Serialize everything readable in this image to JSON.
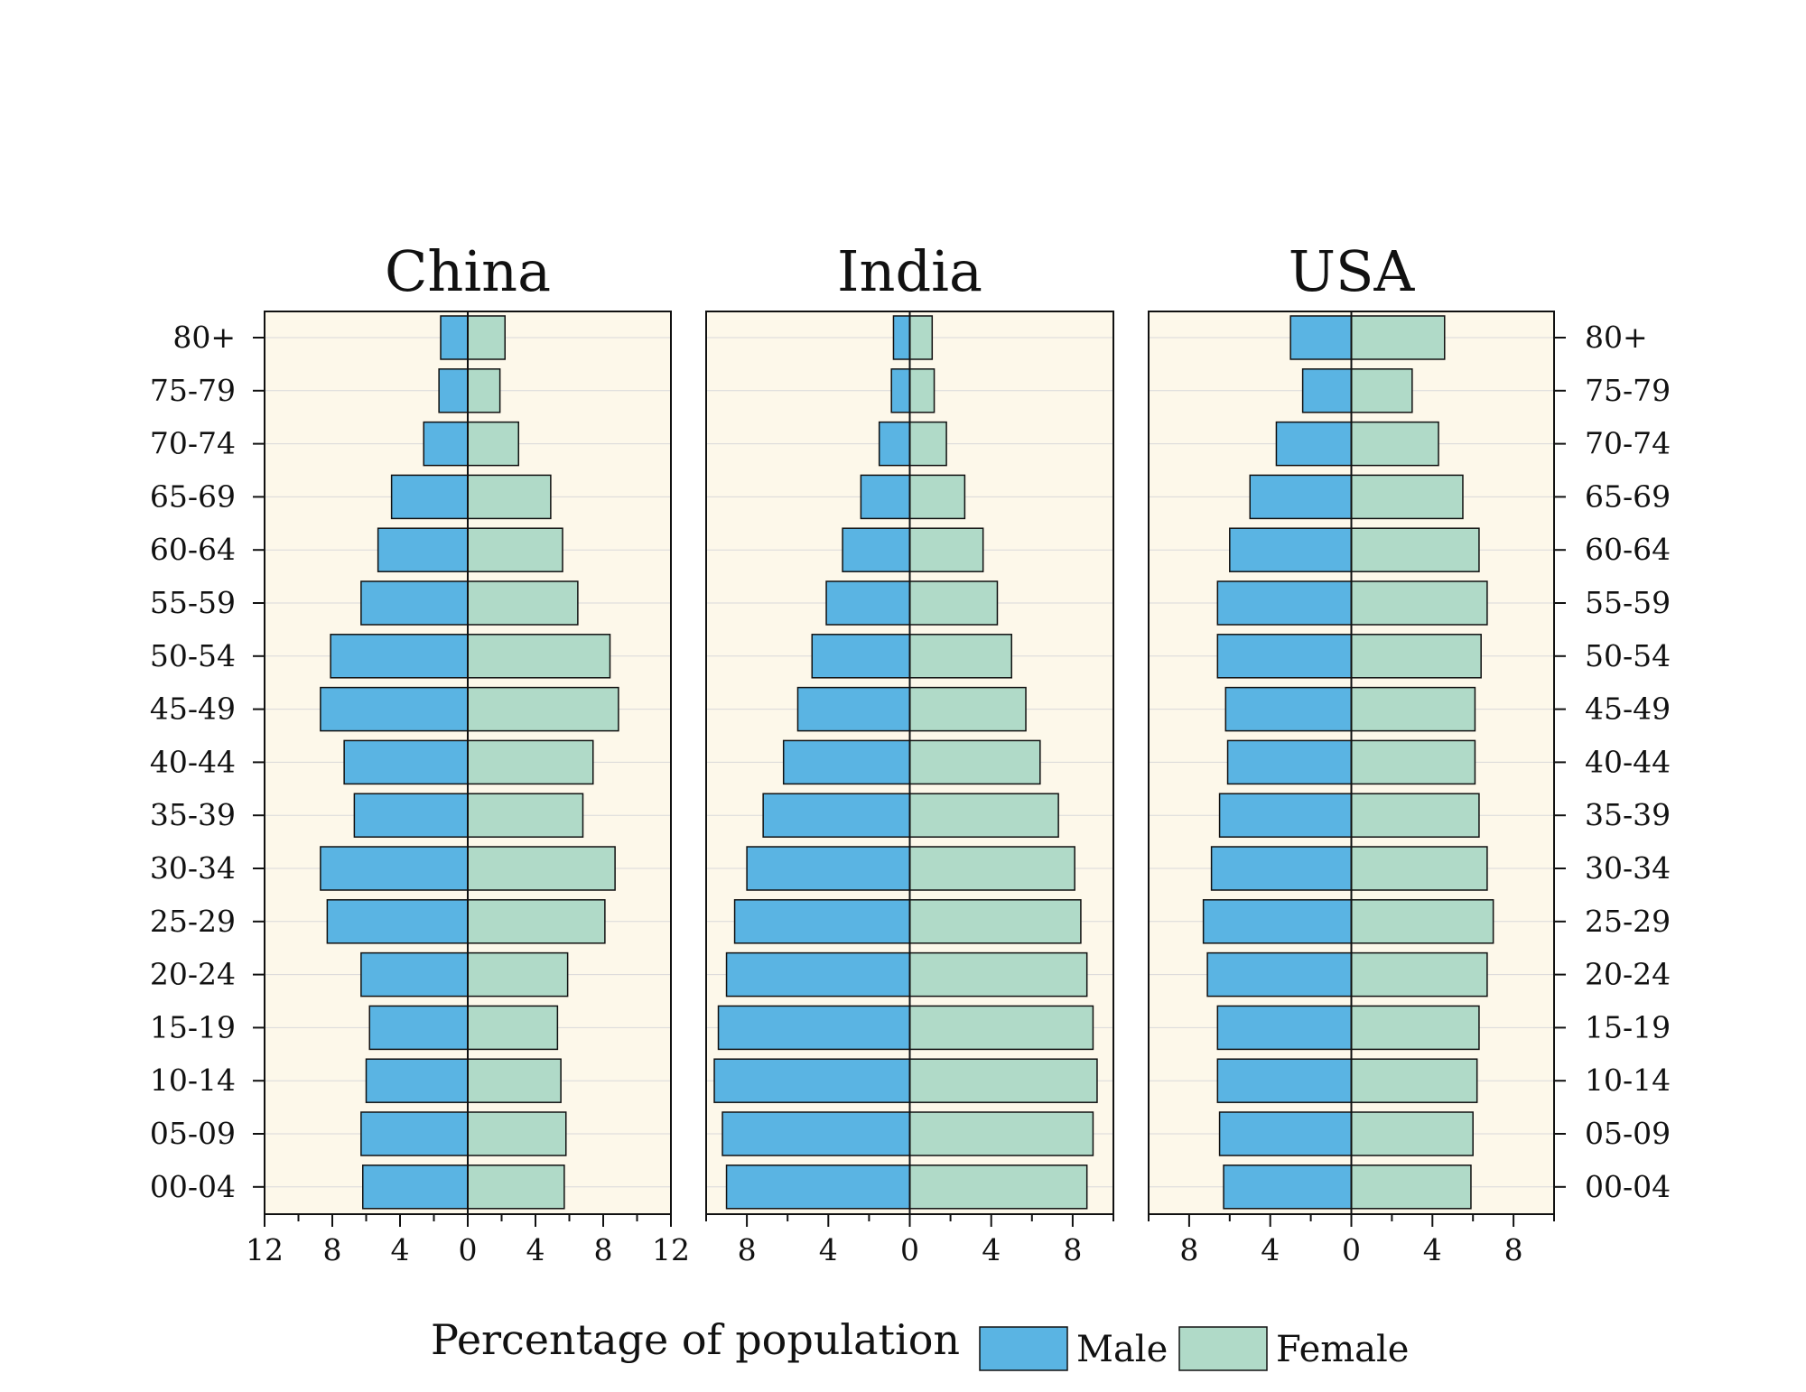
{
  "chart_data": {
    "type": "bar",
    "layout": "population-pyramid",
    "categories": [
      "80+",
      "75-79",
      "70-74",
      "65-69",
      "60-64",
      "55-59",
      "50-54",
      "45-49",
      "40-44",
      "35-39",
      "30-34",
      "25-29",
      "20-24",
      "15-19",
      "10-14",
      "05-09",
      "00-04"
    ],
    "xlabel": "Percentage of population",
    "legend": {
      "position": "bottom",
      "entries": [
        "Male",
        "Female"
      ]
    },
    "colors": {
      "male": "#5ab4e3",
      "female": "#b0dac8",
      "panel_bg": "#fdf8ea",
      "grid": "#d9d9d9"
    },
    "panels": [
      {
        "title": "China",
        "xlim": [
          -12,
          12
        ],
        "xticks": [
          -12,
          -8,
          -4,
          0,
          4,
          8,
          12
        ],
        "xtick_labels": [
          "12",
          "8",
          "4",
          "0",
          "4",
          "8",
          "12"
        ],
        "series": [
          {
            "name": "Male",
            "values": [
              1.6,
              1.7,
              2.6,
              4.5,
              5.3,
              6.3,
              8.1,
              8.7,
              7.3,
              6.7,
              8.7,
              8.3,
              6.3,
              5.8,
              6.0,
              6.3,
              6.2
            ]
          },
          {
            "name": "Female",
            "values": [
              2.2,
              1.9,
              3.0,
              4.9,
              5.6,
              6.5,
              8.4,
              8.9,
              7.4,
              6.8,
              8.7,
              8.1,
              5.9,
              5.3,
              5.5,
              5.8,
              5.7
            ]
          }
        ]
      },
      {
        "title": "India",
        "xlim": [
          -10,
          10
        ],
        "xticks": [
          -8,
          -4,
          0,
          4,
          8
        ],
        "xtick_labels": [
          "8",
          "4",
          "0",
          "4",
          "8"
        ],
        "series": [
          {
            "name": "Male",
            "values": [
              0.8,
              0.9,
              1.5,
              2.4,
              3.3,
              4.1,
              4.8,
              5.5,
              6.2,
              7.2,
              8.0,
              8.6,
              9.0,
              9.4,
              9.6,
              9.2,
              9.0
            ]
          },
          {
            "name": "Female",
            "values": [
              1.1,
              1.2,
              1.8,
              2.7,
              3.6,
              4.3,
              5.0,
              5.7,
              6.4,
              7.3,
              8.1,
              8.4,
              8.7,
              9.0,
              9.2,
              9.0,
              8.7
            ]
          }
        ]
      },
      {
        "title": "USA",
        "xlim": [
          -10,
          10
        ],
        "xticks": [
          -8,
          -4,
          0,
          4,
          8
        ],
        "xtick_labels": [
          "8",
          "4",
          "0",
          "4",
          "8"
        ],
        "series": [
          {
            "name": "Male",
            "values": [
              3.0,
              2.4,
              3.7,
              5.0,
              6.0,
              6.6,
              6.6,
              6.2,
              6.1,
              6.5,
              6.9,
              7.3,
              7.1,
              6.6,
              6.6,
              6.5,
              6.3
            ]
          },
          {
            "name": "Female",
            "values": [
              4.6,
              3.0,
              4.3,
              5.5,
              6.3,
              6.7,
              6.4,
              6.1,
              6.1,
              6.3,
              6.7,
              7.0,
              6.7,
              6.3,
              6.2,
              6.0,
              5.9
            ]
          }
        ]
      }
    ]
  }
}
